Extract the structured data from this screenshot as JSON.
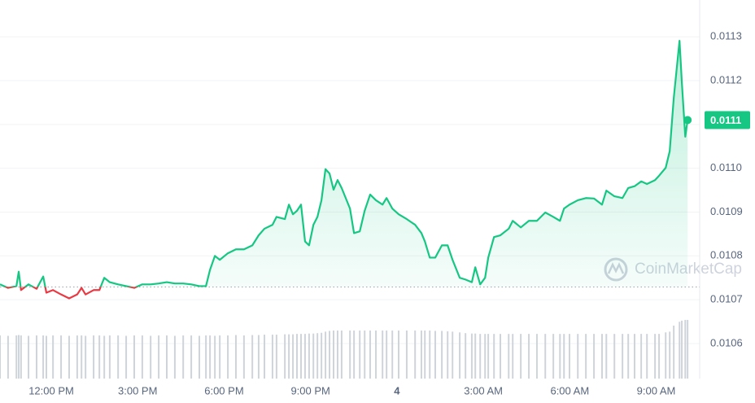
{
  "chart_data": {
    "type": "line",
    "x": [
      10.22,
      10.5,
      10.79,
      10.87,
      10.95,
      11.21,
      11.49,
      11.72,
      11.83,
      12.06,
      12.34,
      12.62,
      12.9,
      13.05,
      13.19,
      13.47,
      13.67,
      13.84,
      14.03,
      14.32,
      14.6,
      14.88,
      15.16,
      15.45,
      15.73,
      16.01,
      16.29,
      16.58,
      16.86,
      17.14,
      17.37,
      17.51,
      17.68,
      17.85,
      18.13,
      18.41,
      18.69,
      18.98,
      19.2,
      19.4,
      19.68,
      19.82,
      20.11,
      20.25,
      20.39,
      20.53,
      20.67,
      20.81,
      20.95,
      21.1,
      21.24,
      21.38,
      21.52,
      21.66,
      21.8,
      21.94,
      22.08,
      22.37,
      22.51,
      22.71,
      22.88,
      23.07,
      23.27,
      23.5,
      23.64,
      23.84,
      24.06,
      24.34,
      24.63,
      24.85,
      24.97,
      25.14,
      25.33,
      25.56,
      25.76,
      25.93,
      26.18,
      26.38,
      26.6,
      26.72,
      26.89,
      27.06,
      27.17,
      27.37,
      27.59,
      27.88,
      28.02,
      28.3,
      28.58,
      28.86,
      29.15,
      29.43,
      29.66,
      29.8,
      29.99,
      30.28,
      30.56,
      30.84,
      31.12,
      31.27,
      31.55,
      31.83,
      32.03,
      32.25,
      32.48,
      32.68,
      32.96,
      33.1,
      33.33,
      33.47,
      33.61,
      33.81,
      33.89,
      34.01,
      34.09
    ],
    "values": [
      0.010735,
      0.010727,
      0.010731,
      0.010764,
      0.010722,
      0.010735,
      0.010725,
      0.010753,
      0.010716,
      0.010722,
      0.010712,
      0.010703,
      0.010712,
      0.010727,
      0.010712,
      0.010722,
      0.010722,
      0.01075,
      0.01074,
      0.010735,
      0.010731,
      0.010727,
      0.010735,
      0.010735,
      0.010737,
      0.01074,
      0.010737,
      0.010737,
      0.010735,
      0.010731,
      0.010731,
      0.010768,
      0.0108,
      0.010791,
      0.010806,
      0.010815,
      0.010815,
      0.010824,
      0.010847,
      0.010862,
      0.010871,
      0.010889,
      0.010884,
      0.010917,
      0.010895,
      0.010903,
      0.010917,
      0.010833,
      0.010824,
      0.010871,
      0.010889,
      0.010927,
      0.010998,
      0.010988,
      0.010951,
      0.010973,
      0.010955,
      0.010908,
      0.010852,
      0.010856,
      0.010903,
      0.01094,
      0.010927,
      0.010917,
      0.010932,
      0.010908,
      0.010895,
      0.010884,
      0.010871,
      0.010852,
      0.010833,
      0.010796,
      0.010796,
      0.010824,
      0.010824,
      0.010791,
      0.01075,
      0.010746,
      0.01074,
      0.010774,
      0.010735,
      0.01075,
      0.010796,
      0.010843,
      0.010847,
      0.010862,
      0.01088,
      0.010865,
      0.01088,
      0.01088,
      0.010899,
      0.010889,
      0.01088,
      0.010908,
      0.010917,
      0.010927,
      0.010932,
      0.010931,
      0.010917,
      0.010949,
      0.010936,
      0.010932,
      0.010955,
      0.010959,
      0.01097,
      0.010964,
      0.010973,
      0.010983,
      0.011001,
      0.011039,
      0.01116,
      0.011291,
      0.011197,
      0.011072,
      0.01111
    ],
    "color": "#16c784",
    "down_color": "#ea3943",
    "baseline": 0.010729,
    "volume": [
      11.4,
      11.3,
      11.4,
      11.5,
      11.4,
      11.3,
      11.4,
      11.4,
      11.3,
      11.4,
      11.4,
      11.3,
      11.4,
      11.4,
      11.3,
      11.4,
      11.4,
      11.3,
      11.4,
      11.4,
      11.3,
      11.4,
      11.4,
      11.3,
      11.4,
      11.4,
      11.3,
      11.4,
      11.4,
      11.3,
      11.4,
      11.4,
      11.3,
      11.4,
      11.4,
      11.5,
      11.4,
      11.5,
      11.5,
      11.6,
      11.6,
      11.6,
      11.7,
      11.7,
      11.7,
      11.8,
      11.8,
      11.8,
      11.9,
      11.9,
      12.0,
      12.1,
      12.4,
      12.6,
      12.7,
      12.7,
      12.7,
      12.7,
      12.7,
      12.7,
      12.7,
      12.7,
      12.7,
      12.7,
      12.7,
      12.7,
      12.7,
      12.7,
      12.7,
      12.7,
      12.7,
      12.7,
      12.6,
      12.6,
      12.5,
      12.4,
      12.2,
      12.0,
      11.9,
      11.9,
      11.8,
      11.8,
      11.8,
      11.8,
      11.8,
      11.8,
      11.8,
      11.8,
      11.8,
      11.8,
      11.8,
      11.8,
      11.8,
      11.8,
      11.8,
      11.8,
      11.8,
      11.8,
      11.8,
      11.8,
      11.8,
      11.8,
      11.8,
      11.8,
      11.8,
      11.8,
      11.8,
      11.8,
      12.2,
      12.4,
      14.0,
      15.0,
      15.3,
      15.5,
      15.5
    ],
    "volume_color": "#cfd4db",
    "y2lim": [
      0,
      100
    ],
    "xlim": [
      10.22,
      34.51
    ],
    "xticks": [
      {
        "value": 12,
        "label": "12:00 PM"
      },
      {
        "value": 15,
        "label": "3:00 PM"
      },
      {
        "value": 18,
        "label": "6:00 PM"
      },
      {
        "value": 21,
        "label": "9:00 PM"
      },
      {
        "value": 24,
        "label": "4"
      },
      {
        "value": 27,
        "label": "3:00 AM"
      },
      {
        "value": 30,
        "label": "6:00 AM"
      },
      {
        "value": 33,
        "label": "9:00 AM"
      }
    ],
    "ylim": [
      0.01052,
      0.011384
    ],
    "yticks": [
      0.0106,
      0.0107,
      0.0108,
      0.0109,
      {
        "value": 0.011,
        "label": "0.0110"
      },
      0.0111,
      0.0112,
      0.0113
    ],
    "grid": true,
    "current_price": {
      "value": 0.01111,
      "label": "0.0111"
    },
    "watermark": "CoinMarketCap"
  }
}
